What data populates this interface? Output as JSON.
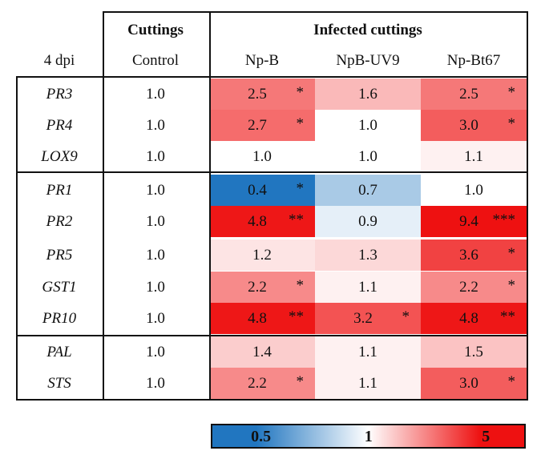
{
  "chart_data": {
    "type": "heatmap",
    "title": "",
    "header": {
      "corner_label": "4 dpi",
      "group_cuttings": "Cuttings",
      "group_infected": "Infected cuttings"
    },
    "columns": [
      "Control",
      "Np-B",
      "NpB-UV9",
      "Np-Bt67"
    ],
    "row_groups": [
      {
        "rows": [
          {
            "gene": "PR3",
            "values": [
              "1.0",
              "2.5",
              "1.6",
              "2.5"
            ],
            "sig": [
              "",
              "*",
              "",
              "*"
            ]
          },
          {
            "gene": "PR4",
            "values": [
              "1.0",
              "2.7",
              "1.0",
              "3.0"
            ],
            "sig": [
              "",
              "*",
              "",
              "*"
            ]
          },
          {
            "gene": "LOX9",
            "values": [
              "1.0",
              "1.0",
              "1.0",
              "1.1"
            ],
            "sig": [
              "",
              "",
              "",
              ""
            ]
          }
        ]
      },
      {
        "rows": [
          {
            "gene": "PR1",
            "values": [
              "1.0",
              "0.4",
              "0.7",
              "1.0"
            ],
            "sig": [
              "",
              "*",
              "",
              ""
            ]
          },
          {
            "gene": "PR2",
            "values": [
              "1.0",
              "4.8",
              "0.9",
              "9.4"
            ],
            "sig": [
              "",
              "**",
              "",
              "***"
            ]
          },
          {
            "gene": "PR5",
            "values": [
              "1.0",
              "1.2",
              "1.3",
              "3.6"
            ],
            "sig": [
              "",
              "",
              "",
              "*"
            ]
          },
          {
            "gene": "GST1",
            "values": [
              "1.0",
              "2.2",
              "1.1",
              "2.2"
            ],
            "sig": [
              "",
              "*",
              "",
              "*"
            ]
          },
          {
            "gene": "PR10",
            "values": [
              "1.0",
              "4.8",
              "3.2",
              "4.8"
            ],
            "sig": [
              "",
              "**",
              "*",
              "**"
            ]
          }
        ]
      },
      {
        "rows": [
          {
            "gene": "PAL",
            "values": [
              "1.0",
              "1.4",
              "1.1",
              "1.5"
            ],
            "sig": [
              "",
              "",
              "",
              ""
            ]
          },
          {
            "gene": "STS",
            "values": [
              "1.0",
              "2.2",
              "1.1",
              "3.0"
            ],
            "sig": [
              "",
              "*",
              "",
              "*"
            ]
          }
        ]
      }
    ],
    "color_scale": {
      "labels": [
        "0.5",
        "1",
        "5"
      ],
      "min": 0.4,
      "mid": 1,
      "max": 5,
      "low_color": "#2176c0",
      "mid_color": "#ffffff",
      "high_color": "#ee1111"
    }
  }
}
